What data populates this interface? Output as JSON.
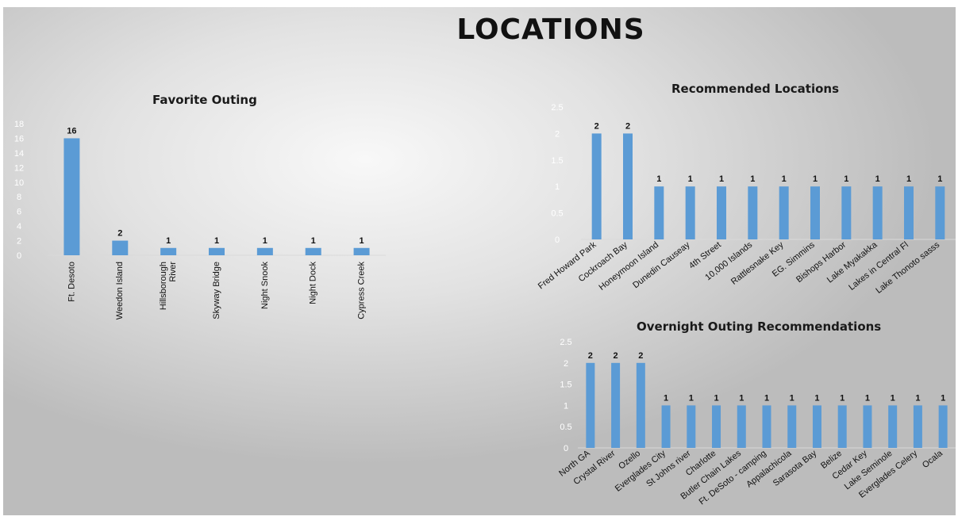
{
  "page": {
    "title": "LOCATIONS"
  },
  "colors": {
    "bar": "#5b9bd5",
    "axis_text": "#ffffff",
    "label_text": "#111111",
    "axis_line": "#d9d9d9"
  },
  "chart_data": [
    {
      "type": "bar",
      "title": "Favorite Outing",
      "categories": [
        "Ft. Desoto",
        "Weedon Island",
        "Hillsborough River",
        "Skyway Bridge",
        "Night Snook",
        "Night Dock",
        "Cypress Creek"
      ],
      "values": [
        16,
        2,
        1,
        1,
        1,
        1,
        1
      ],
      "yticks": [
        "0",
        "2",
        "4",
        "6",
        "8",
        "10",
        "12",
        "14",
        "16",
        "18"
      ],
      "ylim": [
        0,
        18
      ],
      "data_labels": true,
      "grid": false,
      "legend": "none"
    },
    {
      "type": "bar",
      "title": "Recommended Locations",
      "categories": [
        "Fred Howard Park",
        "Cockroach Bay",
        "Honeymoon Island",
        "Dunedin Causeay",
        "4th Street",
        "10,000 Islands",
        "Rattlesnake Key",
        "EG. Simmins",
        "Bishops Harbor",
        "Lake Myakakka",
        "Lakes in Central Fl",
        "Lake Thonoto sasss"
      ],
      "values": [
        2,
        2,
        1,
        1,
        1,
        1,
        1,
        1,
        1,
        1,
        1,
        1
      ],
      "yticks": [
        "0",
        "0.5",
        "1",
        "1.5",
        "2",
        "2.5"
      ],
      "ylim": [
        0,
        2.5
      ],
      "data_labels": true,
      "grid": false,
      "legend": "none"
    },
    {
      "type": "bar",
      "title": "Overnight Outing Recommendations",
      "categories": [
        "North GA",
        "Crystal River",
        "Ozello",
        "Everglades City",
        "St Johns river",
        "Charlotte",
        "Butler Chain Lakes",
        "Ft. DeSoto - camping",
        "Appalachicola",
        "Sarasota Bay",
        "Belize",
        "Cedar Key",
        "Lake Seminole",
        "Everglades Celery",
        "Ocala"
      ],
      "values": [
        2,
        2,
        2,
        1,
        1,
        1,
        1,
        1,
        1,
        1,
        1,
        1,
        1,
        1,
        1
      ],
      "yticks": [
        "0",
        "0.5",
        "1",
        "1.5",
        "2",
        "2.5"
      ],
      "ylim": [
        0,
        2.5
      ],
      "data_labels": true,
      "grid": false,
      "legend": "none"
    }
  ]
}
